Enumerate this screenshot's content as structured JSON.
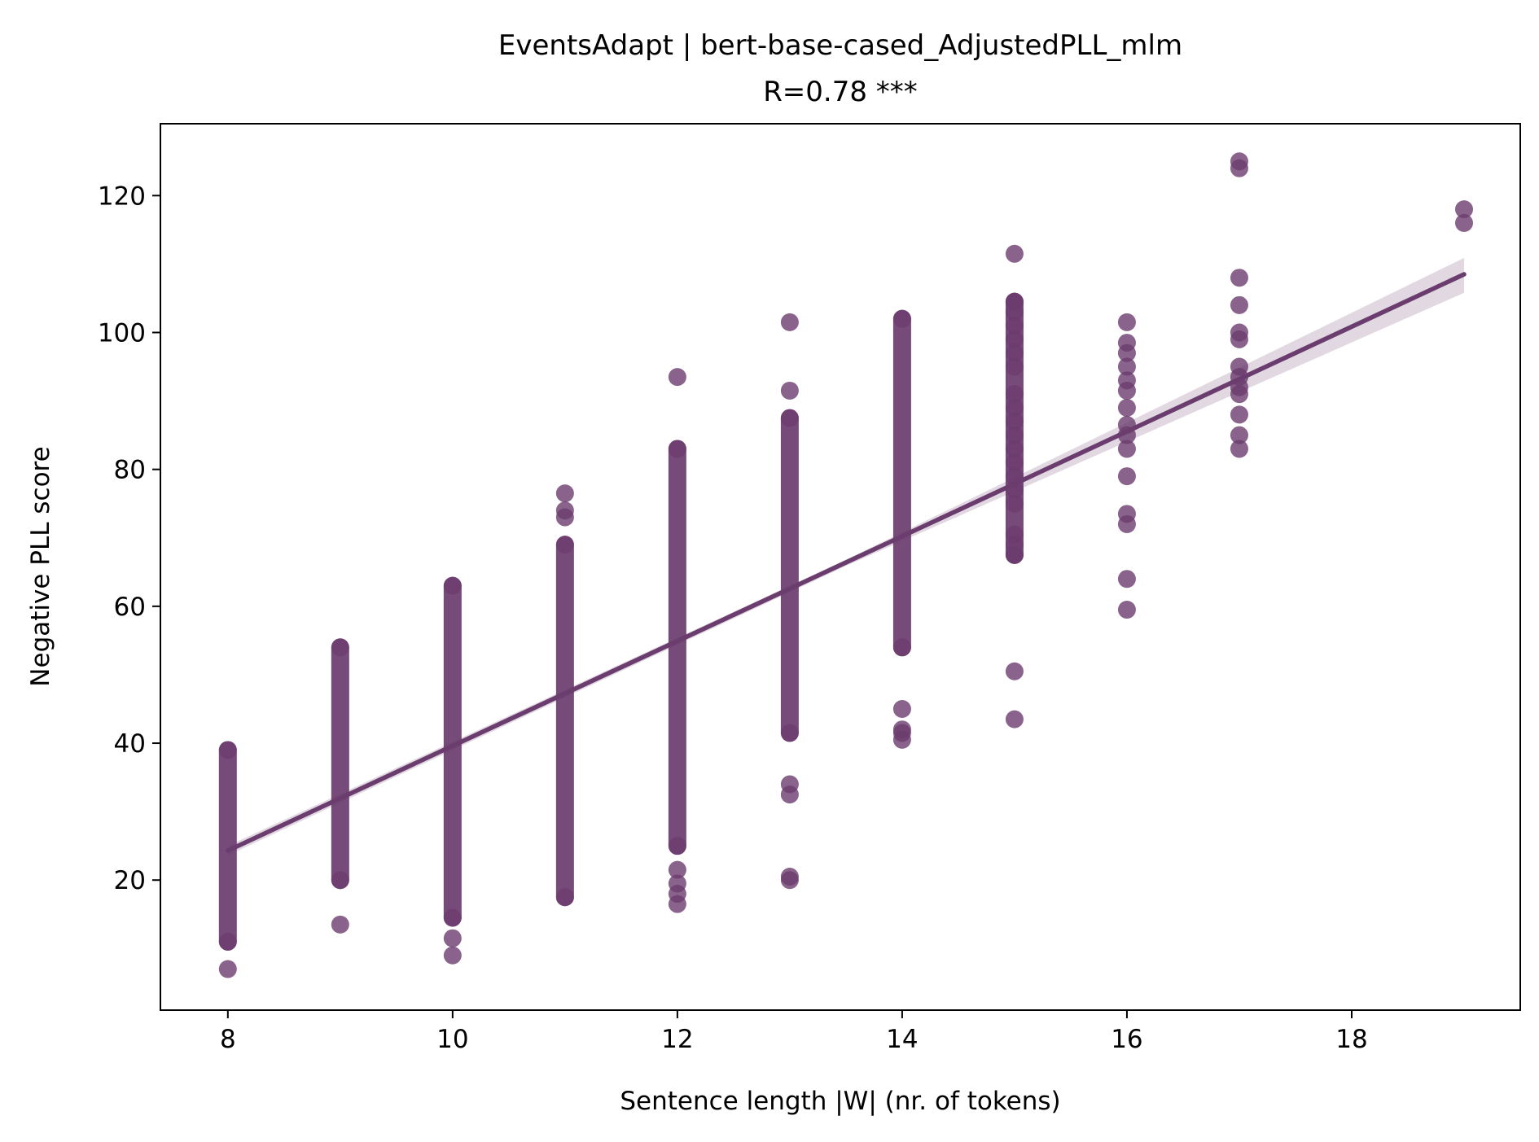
{
  "chart_data": {
    "type": "scatter",
    "title": "EventsAdapt | bert-base-cased_AdjustedPLL_mlm",
    "subtitle": "R=0.78 ***",
    "xlabel": "Sentence length |W| (nr. of tokens)",
    "ylabel": "Negative PLL score",
    "xlim": [
      7.4,
      19.5
    ],
    "ylim": [
      1.0,
      130.5
    ],
    "xticks": [
      8,
      10,
      12,
      14,
      16,
      18
    ],
    "yticks": [
      20,
      40,
      60,
      80,
      100,
      120
    ],
    "grid": false,
    "legend": "none",
    "marker_color": "#6B3C6E",
    "line_color": "#6B3C6E",
    "ci_color": "#6B3C6E",
    "regression": {
      "x": [
        8,
        19
      ],
      "y": [
        24.3,
        108.5
      ],
      "ci_lower_at_x": [
        [
          8,
          23.6
        ],
        [
          13.5,
          65.9
        ],
        [
          19,
          105.8
        ]
      ],
      "ci_upper_at_x": [
        [
          8,
          25.0
        ],
        [
          13.5,
          66.8
        ],
        [
          19,
          110.9
        ]
      ]
    },
    "columns": [
      {
        "x": 8,
        "min": 11.0,
        "max": 39.0,
        "outliers": [
          7.0
        ]
      },
      {
        "x": 9,
        "min": 20.0,
        "max": 54.0,
        "outliers": [
          13.5
        ]
      },
      {
        "x": 10,
        "min": 14.5,
        "max": 63.0,
        "outliers": [
          9.0,
          11.5
        ]
      },
      {
        "x": 11,
        "min": 17.5,
        "max": 69.0,
        "outliers": [
          73.0,
          74.0,
          76.5
        ]
      },
      {
        "x": 12,
        "min": 25.0,
        "max": 83.0,
        "outliers": [
          16.5,
          18.0,
          19.5,
          21.5,
          93.5
        ]
      },
      {
        "x": 13,
        "min": 41.5,
        "max": 87.5,
        "outliers": [
          20.0,
          20.5,
          32.5,
          34.0,
          91.5,
          101.5
        ]
      },
      {
        "x": 14,
        "min": 54.0,
        "max": 102.0,
        "outliers": [
          40.5,
          41.5,
          42.0,
          45.0
        ]
      },
      {
        "x": 15,
        "min": 67.5,
        "max": 104.5,
        "outliers": [
          43.5,
          50.5,
          111.5
        ]
      }
    ],
    "points": [
      {
        "x": 15,
        "y": 104.5
      },
      {
        "x": 15,
        "y": 103.0
      },
      {
        "x": 15,
        "y": 101.0
      },
      {
        "x": 15,
        "y": 99.0
      },
      {
        "x": 15,
        "y": 97.0
      },
      {
        "x": 15,
        "y": 95.0
      },
      {
        "x": 15,
        "y": 91.0
      },
      {
        "x": 15,
        "y": 89.0
      },
      {
        "x": 15,
        "y": 87.0
      },
      {
        "x": 15,
        "y": 85.0
      },
      {
        "x": 15,
        "y": 83.0
      },
      {
        "x": 15,
        "y": 81.0
      },
      {
        "x": 15,
        "y": 79.0
      },
      {
        "x": 15,
        "y": 77.0
      },
      {
        "x": 15,
        "y": 75.0
      },
      {
        "x": 15,
        "y": 70.5
      },
      {
        "x": 15,
        "y": 69.0
      },
      {
        "x": 15,
        "y": 67.5
      },
      {
        "x": 16,
        "y": 101.5
      },
      {
        "x": 16,
        "y": 98.5
      },
      {
        "x": 16,
        "y": 97.0
      },
      {
        "x": 16,
        "y": 95.0
      },
      {
        "x": 16,
        "y": 93.0
      },
      {
        "x": 16,
        "y": 91.5
      },
      {
        "x": 16,
        "y": 89.0
      },
      {
        "x": 16,
        "y": 86.5
      },
      {
        "x": 16,
        "y": 85.0
      },
      {
        "x": 16,
        "y": 83.0
      },
      {
        "x": 16,
        "y": 79.0
      },
      {
        "x": 16,
        "y": 73.5
      },
      {
        "x": 16,
        "y": 72.0
      },
      {
        "x": 16,
        "y": 64.0
      },
      {
        "x": 16,
        "y": 59.5
      },
      {
        "x": 17,
        "y": 125.0
      },
      {
        "x": 17,
        "y": 124.0
      },
      {
        "x": 17,
        "y": 108.0
      },
      {
        "x": 17,
        "y": 104.0
      },
      {
        "x": 17,
        "y": 100.0
      },
      {
        "x": 17,
        "y": 99.0
      },
      {
        "x": 17,
        "y": 95.0
      },
      {
        "x": 17,
        "y": 93.5
      },
      {
        "x": 17,
        "y": 92.0
      },
      {
        "x": 17,
        "y": 91.0
      },
      {
        "x": 17,
        "y": 88.0
      },
      {
        "x": 17,
        "y": 85.0
      },
      {
        "x": 17,
        "y": 83.0
      },
      {
        "x": 19,
        "y": 118.0
      },
      {
        "x": 19,
        "y": 116.0
      }
    ]
  }
}
